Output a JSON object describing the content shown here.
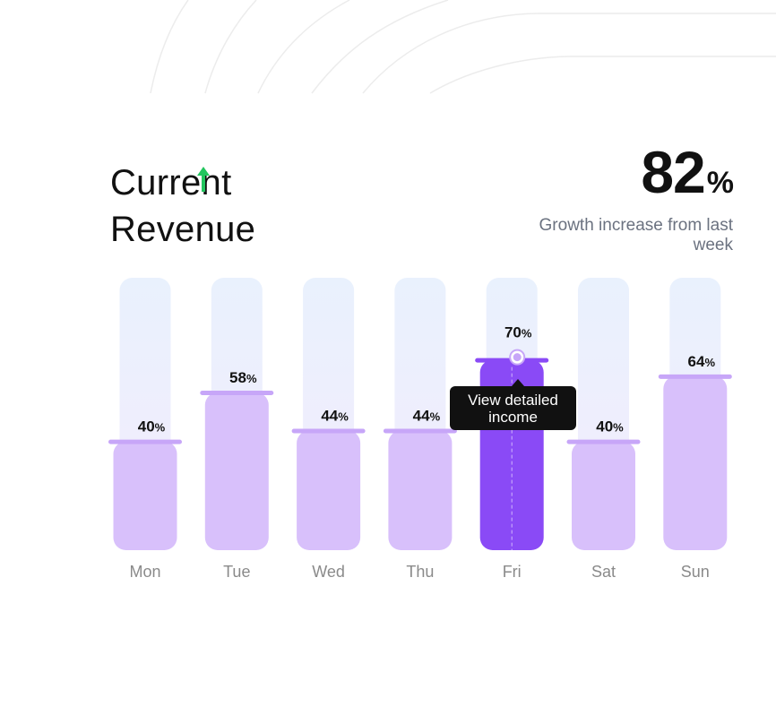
{
  "header": {
    "title_line1": "Current",
    "title_line2": "Revenue",
    "growth_icon": "arrow-up-icon",
    "growth_icon_color": "#22c55e"
  },
  "stat": {
    "value": "82",
    "unit": "%",
    "caption": "Growth increase from last week"
  },
  "tooltip": {
    "label": "View detailed income",
    "anchor_day": "Fri"
  },
  "colors": {
    "track_top": "#e9f1fd",
    "track_bottom": "#f3ecfd",
    "bar": "#d8c0fb",
    "bar_highlight": "#8a4af6",
    "cap": "#c7a6f8",
    "label": "#111111",
    "axis_label": "#8a8a8a"
  },
  "chart_data": {
    "type": "bar",
    "categories": [
      "Mon",
      "Tue",
      "Wed",
      "Thu",
      "Fri",
      "Sat",
      "Sun"
    ],
    "values": [
      40,
      58,
      44,
      44,
      70,
      40,
      64
    ],
    "value_suffix": "%",
    "highlight": "Fri",
    "ylim": [
      0,
      100
    ],
    "grid": false
  }
}
